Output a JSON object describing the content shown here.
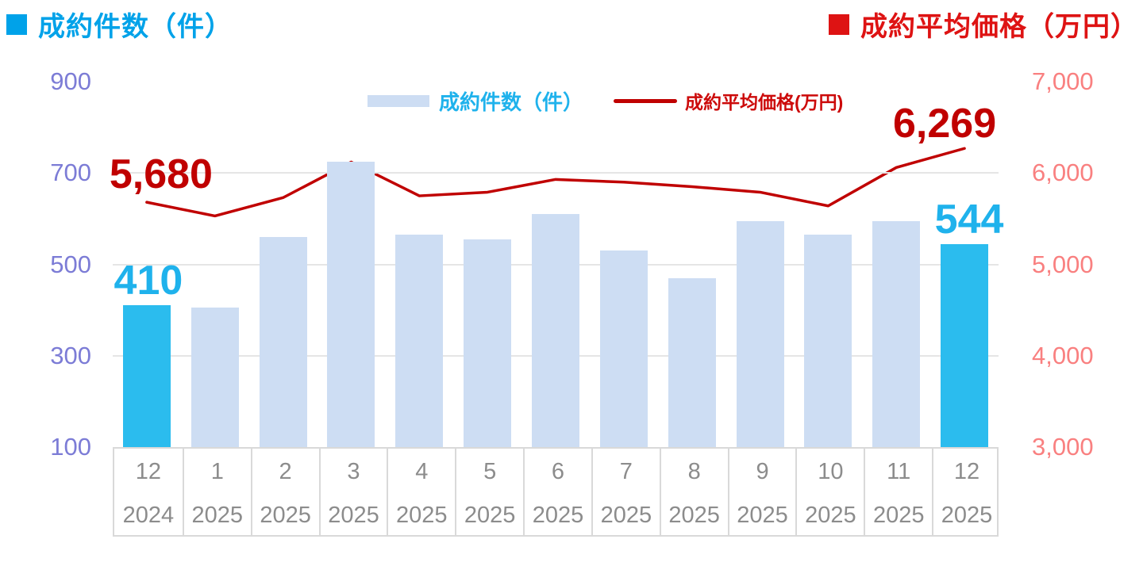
{
  "titles": {
    "left": {
      "text": "成約件数（件）",
      "color": "#00A2E9"
    },
    "right": {
      "text": "成約平均価格（万円）",
      "color": "#DE1313"
    }
  },
  "legend": {
    "bar": {
      "label": "成約件数（件）",
      "swatch_color": "#CDDDF3",
      "text_color": "#1FB2EC"
    },
    "line": {
      "label": "成約平均価格(万円)",
      "swatch_color": "#C00000",
      "text_color": "#CC0A0A"
    }
  },
  "chart_data": {
    "type": "bar",
    "subtype": "bar+line dual axis combo",
    "grid": "horizontal-only",
    "legend_position": "top-center",
    "categories": {
      "months": [
        "12",
        "1",
        "2",
        "3",
        "4",
        "5",
        "6",
        "7",
        "8",
        "9",
        "10",
        "11",
        "12"
      ],
      "years": [
        "2024",
        "2025",
        "2025",
        "2025",
        "2025",
        "2025",
        "2025",
        "2025",
        "2025",
        "2025",
        "2025",
        "2025",
        "2025"
      ]
    },
    "series": [
      {
        "name": "成約件数（件）",
        "type": "bar",
        "axis": "left",
        "values": [
          410,
          405,
          560,
          725,
          565,
          555,
          610,
          530,
          470,
          595,
          565,
          595,
          544
        ],
        "bar_color": "#CDDDF3",
        "highlight_color": "#2BBCEE",
        "highlight_indices": [
          0,
          12
        ]
      },
      {
        "name": "成約平均価格(万円)",
        "type": "line",
        "axis": "right",
        "values": [
          5680,
          5530,
          5730,
          6120,
          5750,
          5790,
          5930,
          5900,
          5850,
          5790,
          5640,
          6060,
          6269
        ],
        "line_color": "#C00000"
      }
    ],
    "left_axis": {
      "min": 100,
      "max": 900,
      "tick_values": [
        900,
        700,
        500,
        300,
        100
      ],
      "tick_labels": [
        "900",
        "700",
        "500",
        "300",
        "100"
      ],
      "color": "#7C7CD6"
    },
    "right_axis": {
      "min": 3000,
      "max": 7000,
      "tick_values": [
        7000,
        6000,
        5000,
        4000,
        3000
      ],
      "tick_labels": [
        "7,000",
        "6,000",
        "5,000",
        "4,000",
        "3,000"
      ],
      "color": "#F98080"
    },
    "data_labels": [
      {
        "text": "5,680",
        "series": "line",
        "index": 0,
        "color": "#C00000"
      },
      {
        "text": "6,269",
        "series": "line",
        "index": 12,
        "color": "#C00000"
      },
      {
        "text": "410",
        "series": "bar",
        "index": 0,
        "color": "#1FB2EC"
      },
      {
        "text": "544",
        "series": "bar",
        "index": 12,
        "color": "#1FB2EC"
      }
    ],
    "x_axis_text_color": "#8C8C8C",
    "gridline_color": "#E5E5E5",
    "axis_table_border_color": "#D9D9D9"
  }
}
